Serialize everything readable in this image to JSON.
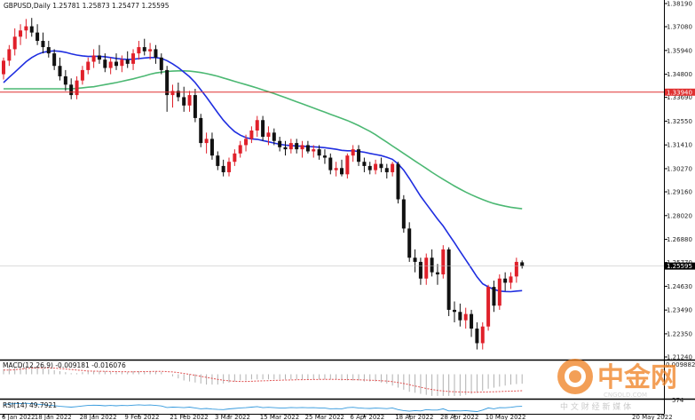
{
  "chart_data": {
    "type": "candlestick",
    "title": "GBPUSD,Daily 1.25781 1.25873 1.25477 1.25595",
    "x_ticks": [
      "6 Jan 2022",
      "18 Jan 2022",
      "28 Jan 2022",
      "9 Feb 2022",
      "21 Feb 2022",
      "3 Mar 2022",
      "15 Mar 2022",
      "25 Mar 2022",
      "6 Apr 2022",
      "18 Apr 2022",
      "28 Apr 2022",
      "10 May 2022",
      "20 May 2022"
    ],
    "y_ticks": [
      "1.38190",
      "1.37080",
      "1.35940",
      "1.34800",
      "1.33690",
      "1.32550",
      "1.31410",
      "1.30270",
      "1.29160",
      "1.28020",
      "1.26880",
      "1.25770",
      "1.24630",
      "1.23490",
      "1.22350",
      "1.21240"
    ],
    "ylim": [
      1.2124,
      1.3819
    ],
    "hline": {
      "value": 1.3394,
      "label": "1.33940",
      "color": "#e03030"
    },
    "current_price_label": "1.25595",
    "candles": [
      {
        "o": 1.348,
        "h": 1.356,
        "l": 1.3455,
        "c": 1.3545
      },
      {
        "o": 1.3545,
        "h": 1.362,
        "l": 1.352,
        "c": 1.36
      },
      {
        "o": 1.36,
        "h": 1.37,
        "l": 1.357,
        "c": 1.366
      },
      {
        "o": 1.366,
        "h": 1.372,
        "l": 1.362,
        "c": 1.369
      },
      {
        "o": 1.369,
        "h": 1.3745,
        "l": 1.365,
        "c": 1.371
      },
      {
        "o": 1.371,
        "h": 1.375,
        "l": 1.366,
        "c": 1.368
      },
      {
        "o": 1.368,
        "h": 1.372,
        "l": 1.362,
        "c": 1.364
      },
      {
        "o": 1.364,
        "h": 1.368,
        "l": 1.358,
        "c": 1.361
      },
      {
        "o": 1.361,
        "h": 1.364,
        "l": 1.356,
        "c": 1.358
      },
      {
        "o": 1.358,
        "h": 1.36,
        "l": 1.35,
        "c": 1.352
      },
      {
        "o": 1.352,
        "h": 1.356,
        "l": 1.345,
        "c": 1.347
      },
      {
        "o": 1.347,
        "h": 1.35,
        "l": 1.34,
        "c": 1.343
      },
      {
        "o": 1.343,
        "h": 1.346,
        "l": 1.336,
        "c": 1.338
      },
      {
        "o": 1.338,
        "h": 1.347,
        "l": 1.336,
        "c": 1.345
      },
      {
        "o": 1.345,
        "h": 1.352,
        "l": 1.343,
        "c": 1.35
      },
      {
        "o": 1.35,
        "h": 1.356,
        "l": 1.348,
        "c": 1.354
      },
      {
        "o": 1.354,
        "h": 1.36,
        "l": 1.351,
        "c": 1.357
      },
      {
        "o": 1.357,
        "h": 1.362,
        "l": 1.353,
        "c": 1.355
      },
      {
        "o": 1.355,
        "h": 1.358,
        "l": 1.349,
        "c": 1.351
      },
      {
        "o": 1.351,
        "h": 1.356,
        "l": 1.348,
        "c": 1.354
      },
      {
        "o": 1.354,
        "h": 1.358,
        "l": 1.35,
        "c": 1.352
      },
      {
        "o": 1.352,
        "h": 1.357,
        "l": 1.349,
        "c": 1.355
      },
      {
        "o": 1.355,
        "h": 1.359,
        "l": 1.351,
        "c": 1.353
      },
      {
        "o": 1.353,
        "h": 1.36,
        "l": 1.35,
        "c": 1.358
      },
      {
        "o": 1.358,
        "h": 1.364,
        "l": 1.355,
        "c": 1.361
      },
      {
        "o": 1.361,
        "h": 1.365,
        "l": 1.357,
        "c": 1.359
      },
      {
        "o": 1.359,
        "h": 1.363,
        "l": 1.355,
        "c": 1.36
      },
      {
        "o": 1.36,
        "h": 1.362,
        "l": 1.353,
        "c": 1.356
      },
      {
        "o": 1.356,
        "h": 1.358,
        "l": 1.348,
        "c": 1.35
      },
      {
        "o": 1.35,
        "h": 1.352,
        "l": 1.33,
        "c": 1.338
      },
      {
        "o": 1.338,
        "h": 1.343,
        "l": 1.332,
        "c": 1.34
      },
      {
        "o": 1.34,
        "h": 1.344,
        "l": 1.335,
        "c": 1.337
      },
      {
        "o": 1.337,
        "h": 1.342,
        "l": 1.33,
        "c": 1.333
      },
      {
        "o": 1.333,
        "h": 1.34,
        "l": 1.33,
        "c": 1.338
      },
      {
        "o": 1.338,
        "h": 1.341,
        "l": 1.325,
        "c": 1.327
      },
      {
        "o": 1.327,
        "h": 1.329,
        "l": 1.313,
        "c": 1.315
      },
      {
        "o": 1.315,
        "h": 1.32,
        "l": 1.31,
        "c": 1.317
      },
      {
        "o": 1.317,
        "h": 1.32,
        "l": 1.307,
        "c": 1.309
      },
      {
        "o": 1.309,
        "h": 1.311,
        "l": 1.302,
        "c": 1.304
      },
      {
        "o": 1.304,
        "h": 1.307,
        "l": 1.299,
        "c": 1.301
      },
      {
        "o": 1.301,
        "h": 1.308,
        "l": 1.299,
        "c": 1.306
      },
      {
        "o": 1.306,
        "h": 1.312,
        "l": 1.304,
        "c": 1.31
      },
      {
        "o": 1.31,
        "h": 1.316,
        "l": 1.308,
        "c": 1.314
      },
      {
        "o": 1.314,
        "h": 1.319,
        "l": 1.311,
        "c": 1.317
      },
      {
        "o": 1.317,
        "h": 1.323,
        "l": 1.315,
        "c": 1.321
      },
      {
        "o": 1.321,
        "h": 1.328,
        "l": 1.318,
        "c": 1.326
      },
      {
        "o": 1.326,
        "h": 1.328,
        "l": 1.316,
        "c": 1.318
      },
      {
        "o": 1.318,
        "h": 1.323,
        "l": 1.314,
        "c": 1.32
      },
      {
        "o": 1.32,
        "h": 1.322,
        "l": 1.314,
        "c": 1.316
      },
      {
        "o": 1.316,
        "h": 1.318,
        "l": 1.311,
        "c": 1.313
      },
      {
        "o": 1.313,
        "h": 1.316,
        "l": 1.309,
        "c": 1.312
      },
      {
        "o": 1.312,
        "h": 1.317,
        "l": 1.31,
        "c": 1.315
      },
      {
        "o": 1.315,
        "h": 1.317,
        "l": 1.31,
        "c": 1.312
      },
      {
        "o": 1.312,
        "h": 1.316,
        "l": 1.308,
        "c": 1.314
      },
      {
        "o": 1.314,
        "h": 1.316,
        "l": 1.31,
        "c": 1.311
      },
      {
        "o": 1.311,
        "h": 1.314,
        "l": 1.308,
        "c": 1.312
      },
      {
        "o": 1.312,
        "h": 1.314,
        "l": 1.307,
        "c": 1.309
      },
      {
        "o": 1.309,
        "h": 1.312,
        "l": 1.305,
        "c": 1.308
      },
      {
        "o": 1.308,
        "h": 1.31,
        "l": 1.3,
        "c": 1.302
      },
      {
        "o": 1.302,
        "h": 1.306,
        "l": 1.299,
        "c": 1.303
      },
      {
        "o": 1.303,
        "h": 1.307,
        "l": 1.299,
        "c": 1.3
      },
      {
        "o": 1.3,
        "h": 1.31,
        "l": 1.298,
        "c": 1.309
      },
      {
        "o": 1.309,
        "h": 1.314,
        "l": 1.306,
        "c": 1.312
      },
      {
        "o": 1.312,
        "h": 1.314,
        "l": 1.304,
        "c": 1.306
      },
      {
        "o": 1.306,
        "h": 1.308,
        "l": 1.301,
        "c": 1.304
      },
      {
        "o": 1.304,
        "h": 1.306,
        "l": 1.3,
        "c": 1.302
      },
      {
        "o": 1.302,
        "h": 1.307,
        "l": 1.3,
        "c": 1.305
      },
      {
        "o": 1.305,
        "h": 1.308,
        "l": 1.301,
        "c": 1.303
      },
      {
        "o": 1.303,
        "h": 1.305,
        "l": 1.298,
        "c": 1.301
      },
      {
        "o": 1.301,
        "h": 1.306,
        "l": 1.299,
        "c": 1.305
      },
      {
        "o": 1.305,
        "h": 1.306,
        "l": 1.286,
        "c": 1.288
      },
      {
        "o": 1.288,
        "h": 1.29,
        "l": 1.272,
        "c": 1.274
      },
      {
        "o": 1.274,
        "h": 1.277,
        "l": 1.258,
        "c": 1.26
      },
      {
        "o": 1.26,
        "h": 1.264,
        "l": 1.253,
        "c": 1.258
      },
      {
        "o": 1.258,
        "h": 1.26,
        "l": 1.247,
        "c": 1.25
      },
      {
        "o": 1.25,
        "h": 1.262,
        "l": 1.247,
        "c": 1.26
      },
      {
        "o": 1.26,
        "h": 1.264,
        "l": 1.251,
        "c": 1.253
      },
      {
        "o": 1.253,
        "h": 1.257,
        "l": 1.247,
        "c": 1.252
      },
      {
        "o": 1.252,
        "h": 1.266,
        "l": 1.25,
        "c": 1.264
      },
      {
        "o": 1.264,
        "h": 1.265,
        "l": 1.232,
        "c": 1.235
      },
      {
        "o": 1.235,
        "h": 1.239,
        "l": 1.229,
        "c": 1.234
      },
      {
        "o": 1.234,
        "h": 1.238,
        "l": 1.227,
        "c": 1.23
      },
      {
        "o": 1.23,
        "h": 1.236,
        "l": 1.226,
        "c": 1.233
      },
      {
        "o": 1.233,
        "h": 1.235,
        "l": 1.222,
        "c": 1.226
      },
      {
        "o": 1.226,
        "h": 1.229,
        "l": 1.216,
        "c": 1.219
      },
      {
        "o": 1.219,
        "h": 1.229,
        "l": 1.216,
        "c": 1.227
      },
      {
        "o": 1.227,
        "h": 1.247,
        "l": 1.225,
        "c": 1.246
      },
      {
        "o": 1.246,
        "h": 1.249,
        "l": 1.234,
        "c": 1.237
      },
      {
        "o": 1.237,
        "h": 1.252,
        "l": 1.235,
        "c": 1.25
      },
      {
        "o": 1.25,
        "h": 1.253,
        "l": 1.244,
        "c": 1.248
      },
      {
        "o": 1.248,
        "h": 1.253,
        "l": 1.245,
        "c": 1.251
      },
      {
        "o": 1.251,
        "h": 1.26,
        "l": 1.248,
        "c": 1.258
      },
      {
        "o": 1.2578,
        "h": 1.2587,
        "l": 1.2548,
        "c": 1.256
      }
    ],
    "ma_fast": [
      1.344,
      1.3465,
      1.349,
      1.3515,
      1.354,
      1.356,
      1.3575,
      1.3585,
      1.359,
      1.3592,
      1.359,
      1.3585,
      1.3578,
      1.3572,
      1.3568,
      1.3565,
      1.3566,
      1.3566,
      1.3564,
      1.356,
      1.3556,
      1.3553,
      1.3551,
      1.3552,
      1.3555,
      1.3558,
      1.356,
      1.356,
      1.3556,
      1.3545,
      1.353,
      1.3512,
      1.349,
      1.3468,
      1.344,
      1.3405,
      1.337,
      1.3333,
      1.3295,
      1.326,
      1.323,
      1.3205,
      1.3188,
      1.3176,
      1.317,
      1.3168,
      1.3162,
      1.3156,
      1.315,
      1.3144,
      1.314,
      1.3138,
      1.3136,
      1.3135,
      1.3133,
      1.3132,
      1.313,
      1.3128,
      1.3124,
      1.312,
      1.3115,
      1.3113,
      1.3113,
      1.311,
      1.3106,
      1.31,
      1.3095,
      1.309,
      1.3082,
      1.3072,
      1.305,
      1.302,
      1.298,
      1.2938,
      1.2895,
      1.2858,
      1.2822,
      1.2786,
      1.2752,
      1.2712,
      1.2672,
      1.263,
      1.259,
      1.255,
      1.2508,
      1.2475,
      1.246,
      1.2448,
      1.244,
      1.2438,
      1.2437,
      1.244,
      1.2442
    ],
    "ma_slow": [
      1.341,
      1.341,
      1.341,
      1.341,
      1.341,
      1.341,
      1.341,
      1.341,
      1.341,
      1.341,
      1.341,
      1.341,
      1.341,
      1.3412,
      1.3415,
      1.3418,
      1.342,
      1.3425,
      1.343,
      1.3435,
      1.344,
      1.3446,
      1.3452,
      1.3458,
      1.3465,
      1.3472,
      1.348,
      1.3486,
      1.349,
      1.3493,
      1.3495,
      1.3496,
      1.3496,
      1.3495,
      1.3492,
      1.3488,
      1.3483,
      1.3477,
      1.347,
      1.3462,
      1.3454,
      1.3446,
      1.3438,
      1.343,
      1.3422,
      1.3414,
      1.3405,
      1.3396,
      1.3387,
      1.3378,
      1.3368,
      1.3358,
      1.3348,
      1.3338,
      1.3328,
      1.3318,
      1.3308,
      1.3298,
      1.3288,
      1.3278,
      1.3268,
      1.3258,
      1.3246,
      1.3234,
      1.322,
      1.3206,
      1.319,
      1.3172,
      1.3154,
      1.3136,
      1.3118,
      1.31,
      1.3082,
      1.3064,
      1.3046,
      1.3028,
      1.301,
      1.2993,
      1.2976,
      1.296,
      1.2944,
      1.2929,
      1.2915,
      1.2902,
      1.289,
      1.2879,
      1.2869,
      1.286,
      1.2853,
      1.2847,
      1.2842,
      1.2838,
      1.2835
    ],
    "macd": {
      "label": "MACD(12,26,9) -0.009181 -0.016076",
      "top_label": "0.009882",
      "signal": [
        0.004,
        0.004,
        0.0045,
        0.005,
        0.0055,
        0.006,
        0.0062,
        0.0063,
        0.0062,
        0.006,
        0.0056,
        0.0052,
        0.0046,
        0.004,
        0.0036,
        0.0032,
        0.003,
        0.0029,
        0.0028,
        0.0027,
        0.0026,
        0.0025,
        0.0024,
        0.0024,
        0.0025,
        0.0026,
        0.0027,
        0.0028,
        0.0028,
        0.0026,
        0.0022,
        0.0016,
        0.0008,
        -0.0001,
        -0.001,
        -0.002,
        -0.003,
        -0.004,
        -0.005,
        -0.0058,
        -0.0064,
        -0.0068,
        -0.007,
        -0.007,
        -0.0068,
        -0.0066,
        -0.0064,
        -0.0062,
        -0.006,
        -0.0058,
        -0.0056,
        -0.0055,
        -0.0054,
        -0.0053,
        -0.0052,
        -0.0051,
        -0.005,
        -0.005,
        -0.005,
        -0.005,
        -0.0051,
        -0.0052,
        -0.0053,
        -0.0054,
        -0.0056,
        -0.0058,
        -0.006,
        -0.0063,
        -0.0066,
        -0.0072,
        -0.008,
        -0.009,
        -0.0102,
        -0.0114,
        -0.0126,
        -0.0138,
        -0.0148,
        -0.0156,
        -0.0162,
        -0.0167,
        -0.017,
        -0.0172,
        -0.0173,
        -0.0174,
        -0.0174,
        -0.0173,
        -0.0172,
        -0.017,
        -0.0168,
        -0.0166,
        -0.0164,
        -0.0162,
        -0.016
      ],
      "hist": [
        0.005,
        0.006,
        0.007,
        0.008,
        0.008,
        0.008,
        0.007,
        0.006,
        0.005,
        0.004,
        0.003,
        0.002,
        0.001,
        0.001,
        0.002,
        0.003,
        0.003,
        0.003,
        0.003,
        0.002,
        0.002,
        0.002,
        0.002,
        0.003,
        0.003,
        0.003,
        0.003,
        0.003,
        0.002,
        0.0,
        -0.002,
        -0.004,
        -0.006,
        -0.007,
        -0.008,
        -0.009,
        -0.01,
        -0.01,
        -0.01,
        -0.009,
        -0.008,
        -0.007,
        -0.006,
        -0.006,
        -0.005,
        -0.005,
        -0.005,
        -0.005,
        -0.005,
        -0.005,
        -0.005,
        -0.005,
        -0.005,
        -0.005,
        -0.005,
        -0.005,
        -0.005,
        -0.005,
        -0.005,
        -0.005,
        -0.006,
        -0.006,
        -0.006,
        -0.006,
        -0.007,
        -0.007,
        -0.007,
        -0.008,
        -0.009,
        -0.011,
        -0.013,
        -0.015,
        -0.017,
        -0.018,
        -0.019,
        -0.02,
        -0.021,
        -0.021,
        -0.021,
        -0.021,
        -0.021,
        -0.021,
        -0.02,
        -0.019,
        -0.018,
        -0.016,
        -0.014,
        -0.013,
        -0.012,
        -0.011,
        -0.01,
        -0.0095,
        -0.0092
      ]
    },
    "rsi": {
      "label": "RSI(14) 49.7921",
      "right_label": "574",
      "values": [
        62,
        64,
        66,
        67,
        68,
        66,
        63,
        60,
        57,
        54,
        50,
        47,
        45,
        48,
        52,
        55,
        57,
        56,
        53,
        55,
        53,
        55,
        54,
        57,
        59,
        57,
        58,
        55,
        52,
        43,
        45,
        44,
        42,
        45,
        40,
        35,
        37,
        33,
        31,
        30,
        34,
        37,
        40,
        42,
        45,
        48,
        42,
        44,
        42,
        40,
        40,
        43,
        41,
        43,
        41,
        42,
        40,
        39,
        35,
        36,
        35,
        42,
        44,
        40,
        38,
        37,
        39,
        38,
        36,
        40,
        30,
        24,
        20,
        24,
        22,
        30,
        27,
        27,
        35,
        22,
        23,
        22,
        24,
        21,
        18,
        27,
        40,
        35,
        42,
        41,
        44,
        49,
        50
      ]
    },
    "grid": false,
    "legend": "none"
  },
  "watermark": {
    "main": "中金网",
    "sub": "CNGOLD.COM",
    "tagline": "中 文 财 经 新 媒 体",
    "brand_color": "#f08020"
  }
}
